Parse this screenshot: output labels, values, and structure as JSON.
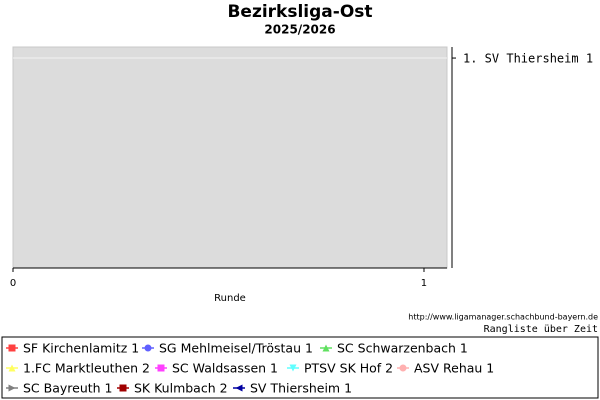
{
  "chart_data": {
    "type": "line",
    "title": "Bezirksliga-Ost",
    "subtitle": "2025/2026",
    "x_label": "Runde",
    "source": "http://www.ligamanager.schachbund-bayern.de",
    "caption": "Rangliste über Zeit",
    "x": [],
    "xlim": [
      0,
      1.056
    ],
    "xticks": [
      0,
      1
    ],
    "ylim": [
      20,
      0
    ],
    "yticks": [
      {
        "value": 1,
        "label": "1. SV Thiersheim 1"
      }
    ],
    "grid": true,
    "legend": "bottom",
    "series": [
      {
        "name": "SF Kirchenlamitz 1",
        "color": "#ff4040",
        "marker": "square",
        "values": []
      },
      {
        "name": "SG Mehlmeisel/Tröstau 1",
        "color": "#6060ff",
        "marker": "circle",
        "values": []
      },
      {
        "name": "SC Schwarzenbach 1",
        "color": "#60e060",
        "marker": "triangle-up",
        "values": []
      },
      {
        "name": "1.FC Marktleuthen 2",
        "color": "#ffff60",
        "marker": "triangle-up",
        "values": []
      },
      {
        "name": "SC Waldsassen 1",
        "color": "#ff40ff",
        "marker": "square",
        "values": []
      },
      {
        "name": "PTSV SK Hof 2",
        "color": "#60ffff",
        "marker": "triangle-down",
        "values": []
      },
      {
        "name": "ASV Rehau 1",
        "color": "#ffb0b0",
        "marker": "circle",
        "values": []
      },
      {
        "name": "SC Bayreuth 1",
        "color": "#808080",
        "marker": "triangle-right",
        "values": []
      },
      {
        "name": "SK Kulmbach 2",
        "color": "#a00000",
        "marker": "square",
        "values": []
      },
      {
        "name": "SV Thiersheim 1",
        "color": "#0000a0",
        "marker": "triangle-left",
        "values": []
      }
    ]
  }
}
